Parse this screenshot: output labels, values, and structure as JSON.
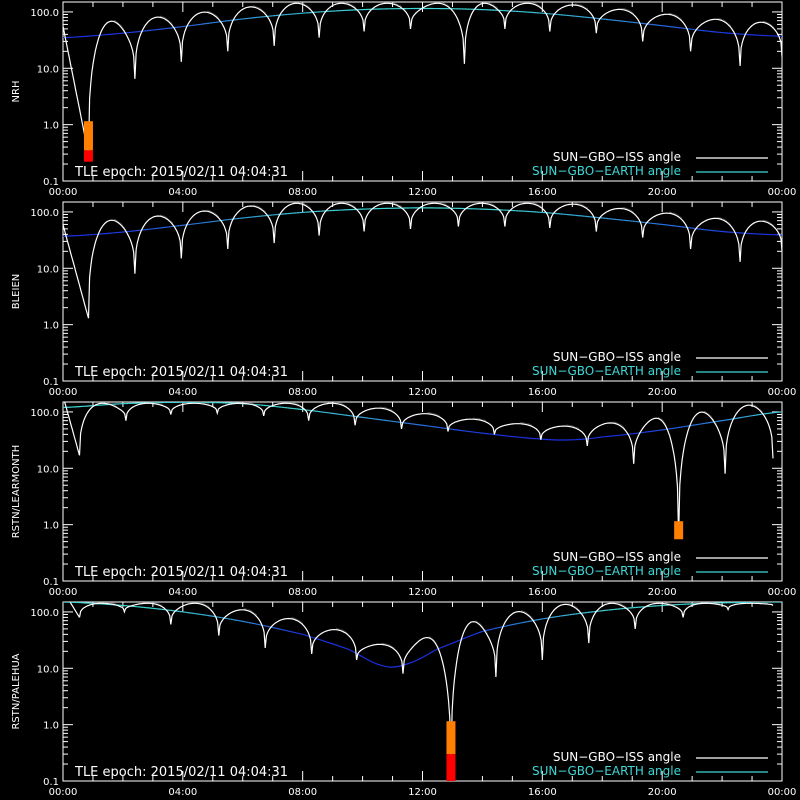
{
  "colors": {
    "background": "#000000",
    "axes": "#ffffff",
    "iss_line": "#ffffff",
    "iss_shadow": "#8c8c8c",
    "earth_line_light": "#3fd7d7",
    "earth_line_dark": "#1b32e6",
    "bar_orange": "#ff7f00",
    "bar_red": "#ff0000"
  },
  "legend": {
    "iss": "SUN−GBO−ISS angle",
    "earth": "SUN−GBO−EARTH angle"
  },
  "epoch_label": "TLE epoch: 2015/02/11 04:04:31",
  "chart_data": [
    {
      "type": "line",
      "station": "NRH",
      "y_scale": "log",
      "ylim": [
        0.1,
        150
      ],
      "xlim_hours": [
        0,
        24
      ],
      "x_tick_labels": [
        "00:00",
        "04:00",
        "08:00",
        "12:00",
        "16:00",
        "20:00",
        "00:00"
      ],
      "y_tick_labels": [
        "100.0",
        "10.0",
        "1.0",
        "0.1"
      ],
      "series": [
        {
          "name": "SUN−GBO−ISS angle",
          "minima": [
            [
              0.85,
              0.3
            ],
            [
              2.4,
              6.5
            ],
            [
              3.95,
              13
            ],
            [
              5.5,
              20
            ],
            [
              7.05,
              25
            ],
            [
              8.55,
              35
            ],
            [
              10.05,
              45
            ],
            [
              11.6,
              50
            ],
            [
              13.4,
              12
            ],
            [
              14.75,
              50
            ],
            [
              16.25,
              45
            ],
            [
              17.8,
              42
            ],
            [
              19.35,
              30
            ],
            [
              20.95,
              20
            ],
            [
              22.6,
              11
            ],
            [
              24,
              16
            ]
          ]
        },
        {
          "name": "SUN−GBO−EARTH angle",
          "points": [
            [
              0,
              35
            ],
            [
              2,
              42
            ],
            [
              4,
              55
            ],
            [
              6,
              75
            ],
            [
              8,
              95
            ],
            [
              10,
              110
            ],
            [
              12,
              115
            ],
            [
              14,
              110
            ],
            [
              16,
              95
            ],
            [
              18,
              75
            ],
            [
              20,
              57
            ],
            [
              22,
              43
            ],
            [
              24,
              37
            ]
          ]
        }
      ],
      "bars": [
        {
          "x": 0.85,
          "y_from": 0.35,
          "y_to": 1.15,
          "color": "orange"
        },
        {
          "x": 0.85,
          "y_from": 0.22,
          "y_to": 0.35,
          "color": "red"
        }
      ]
    },
    {
      "type": "line",
      "station": "BLEIEN",
      "y_scale": "log",
      "ylim": [
        0.1,
        150
      ],
      "xlim_hours": [
        0,
        24
      ],
      "x_tick_labels": [
        "00:00",
        "04:00",
        "08:00",
        "12:00",
        "16:00",
        "20:00",
        "00:00"
      ],
      "y_tick_labels": [
        "100.0",
        "10.0",
        "1.0",
        "0.1"
      ],
      "series": [
        {
          "name": "SUN−GBO−ISS angle",
          "minima": [
            [
              0.85,
              1.3
            ],
            [
              2.4,
              8
            ],
            [
              3.95,
              15
            ],
            [
              5.5,
              22
            ],
            [
              7.05,
              28
            ],
            [
              8.55,
              38
            ],
            [
              10.05,
              45
            ],
            [
              11.6,
              50
            ],
            [
              13.2,
              55
            ],
            [
              14.75,
              55
            ],
            [
              16.25,
              52
            ],
            [
              17.8,
              45
            ],
            [
              19.35,
              35
            ],
            [
              20.95,
              22
            ],
            [
              22.6,
              13
            ],
            [
              24,
              20
            ]
          ]
        },
        {
          "name": "SUN−GBO−EARTH angle",
          "points": [
            [
              0,
              37
            ],
            [
              2,
              44
            ],
            [
              4,
              58
            ],
            [
              6,
              78
            ],
            [
              8,
              98
            ],
            [
              10,
              112
            ],
            [
              12,
              118
            ],
            [
              14,
              112
            ],
            [
              16,
              98
            ],
            [
              18,
              78
            ],
            [
              20,
              60
            ],
            [
              22,
              45
            ],
            [
              24,
              39
            ]
          ]
        }
      ],
      "bars": []
    },
    {
      "type": "line",
      "station": "RSTN/LEARMONTH",
      "y_scale": "log",
      "ylim": [
        0.1,
        150
      ],
      "xlim_hours": [
        0,
        24
      ],
      "x_tick_labels": [
        "00:00",
        "04:00",
        "08:00",
        "12:00",
        "16:00",
        "20:00",
        "00:00"
      ],
      "y_tick_labels": [
        "100.0",
        "10.0",
        "1.0",
        "0.1"
      ],
      "series": [
        {
          "name": "SUN−GBO−ISS angle",
          "minima": [
            [
              0.55,
              17
            ],
            [
              2.1,
              70
            ],
            [
              3.6,
              90
            ],
            [
              5.15,
              95
            ],
            [
              6.7,
              85
            ],
            [
              8.2,
              70
            ],
            [
              9.75,
              58
            ],
            [
              11.3,
              50
            ],
            [
              12.85,
              45
            ],
            [
              14.4,
              40
            ],
            [
              15.95,
              32
            ],
            [
              17.5,
              25
            ],
            [
              19.05,
              12
            ],
            [
              20.55,
              0.6
            ],
            [
              22.1,
              8
            ],
            [
              23.7,
              15
            ]
          ]
        },
        {
          "name": "SUN−GBO−EARTH angle",
          "points": [
            [
              0,
              120
            ],
            [
              2,
              140
            ],
            [
              4,
              148
            ],
            [
              6,
              140
            ],
            [
              8,
              110
            ],
            [
              10,
              80
            ],
            [
              12,
              58
            ],
            [
              14,
              42
            ],
            [
              16,
              33
            ],
            [
              17,
              32
            ],
            [
              18,
              36
            ],
            [
              20,
              48
            ],
            [
              22,
              70
            ],
            [
              24,
              100
            ]
          ]
        }
      ],
      "bars": [
        {
          "x": 20.55,
          "y_from": 0.55,
          "y_to": 1.15,
          "color": "orange"
        }
      ]
    },
    {
      "type": "line",
      "station": "RSTN/PALEHUA",
      "y_scale": "log",
      "ylim": [
        0.1,
        150
      ],
      "xlim_hours": [
        0,
        24
      ],
      "x_tick_labels": [
        "00:00",
        "04:00",
        "08:00",
        "12:00",
        "16:00",
        "20:00",
        "00:00"
      ],
      "y_tick_labels": [
        "100.0",
        "10.0",
        "1.0",
        "0.1"
      ],
      "series": [
        {
          "name": "SUN−GBO−ISS angle",
          "minima": [
            [
              0.55,
              80
            ],
            [
              2.05,
              100
            ],
            [
              3.6,
              60
            ],
            [
              5.2,
              38
            ],
            [
              6.75,
              23
            ],
            [
              8.3,
              18
            ],
            [
              9.8,
              14
            ],
            [
              11.35,
              8
            ],
            [
              12.95,
              0.12
            ],
            [
              14.45,
              7
            ],
            [
              16.0,
              14
            ],
            [
              17.55,
              28
            ],
            [
              19.1,
              50
            ],
            [
              20.7,
              80
            ],
            [
              22.2,
              110
            ],
            [
              23.7,
              130
            ]
          ]
        },
        {
          "name": "SUN−GBO−EARTH angle",
          "points": [
            [
              0,
              150
            ],
            [
              2,
              130
            ],
            [
              4,
              100
            ],
            [
              6,
              68
            ],
            [
              8,
              40
            ],
            [
              9.5,
              22
            ],
            [
              10.7,
              11
            ],
            [
              11.5,
              12
            ],
            [
              12.5,
              22
            ],
            [
              14,
              45
            ],
            [
              16,
              75
            ],
            [
              18,
              105
            ],
            [
              20,
              130
            ],
            [
              22,
              145
            ],
            [
              24,
              150
            ]
          ]
        }
      ],
      "bars": [
        {
          "x": 12.95,
          "y_from": 0.3,
          "y_to": 1.15,
          "color": "orange"
        },
        {
          "x": 12.95,
          "y_from": 0.1,
          "y_to": 0.3,
          "color": "red"
        }
      ]
    }
  ]
}
